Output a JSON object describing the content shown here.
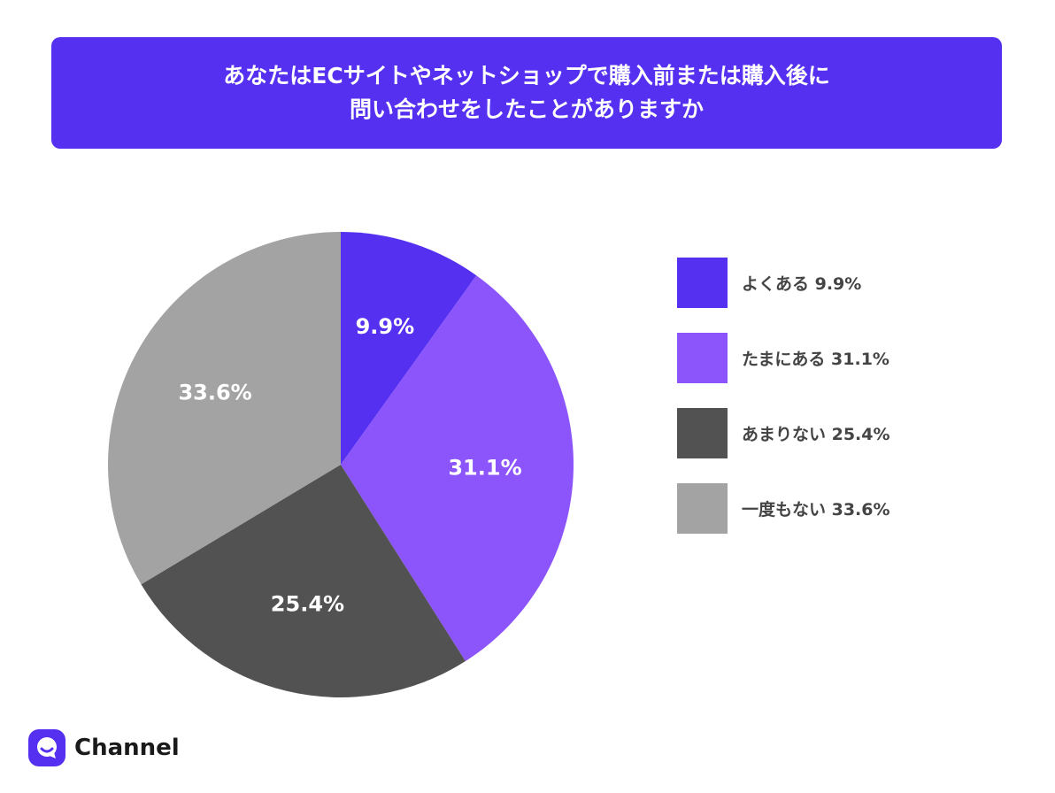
{
  "title": {
    "line1": "あなたはECサイトやネットショップで購入前または購入後に",
    "line2": "問い合わせをしたことがありますか"
  },
  "chart_data": {
    "type": "pie",
    "title": "あなたはECサイトやネットショップで購入前または購入後に問い合わせをしたことがありますか",
    "slices": [
      {
        "label": "よくある",
        "value": 9.9,
        "display": "9.9%",
        "color": "#5530F0"
      },
      {
        "label": "たまにある",
        "value": 31.1,
        "display": "31.1%",
        "color": "#8B55FB"
      },
      {
        "label": "あまりない",
        "value": 25.4,
        "display": "25.4%",
        "color": "#525252"
      },
      {
        "label": "一度もない",
        "value": 33.6,
        "display": "33.6%",
        "color": "#A3A3A3"
      }
    ],
    "legend_position": "right"
  },
  "legend": [
    {
      "text": "よくある 9.9%",
      "color": "#5530F0"
    },
    {
      "text": "たまにある 31.1%",
      "color": "#8B55FB"
    },
    {
      "text": "あまりない 25.4%",
      "color": "#525252"
    },
    {
      "text": "一度もない 33.6%",
      "color": "#A3A3A3"
    }
  ],
  "logo": {
    "text": "Channel",
    "icon": "channel-chat-icon",
    "color": "#5530F0"
  }
}
